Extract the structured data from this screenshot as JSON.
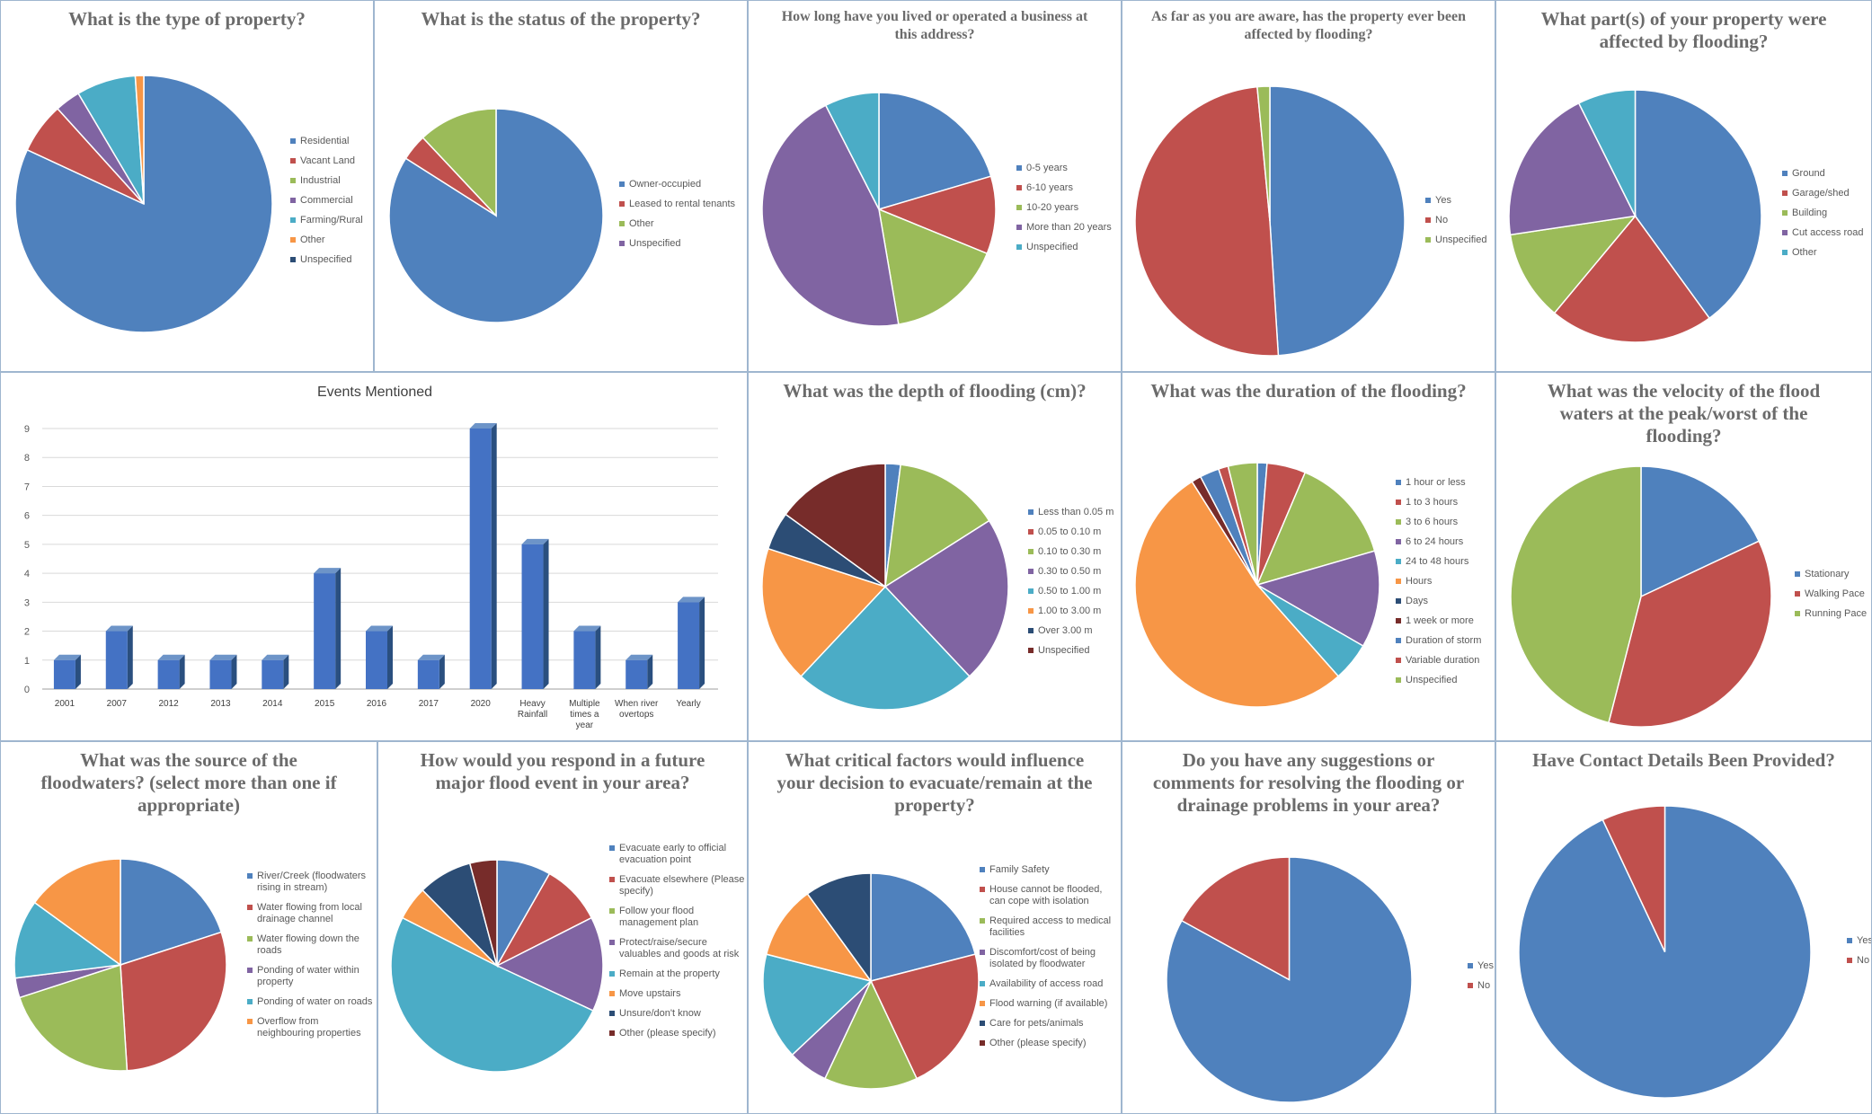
{
  "charts": [
    {
      "id": "c1",
      "title": "What is the type of property?",
      "labels": [
        "Residential",
        "Vacant Land",
        "Industrial",
        "Commercial",
        "Farming/Rural",
        "Other",
        "Unspecified"
      ],
      "values": [
        77,
        6,
        0,
        3,
        7,
        1,
        0
      ]
    },
    {
      "id": "c2",
      "title": "What is the status of the property?",
      "labels": [
        "Owner-occupied",
        "Leased to rental tenants",
        "Other",
        "Unspecified"
      ],
      "values": [
        84,
        4,
        12,
        0
      ]
    },
    {
      "id": "c3",
      "title": "How long have you lived or operated a business at this address?",
      "labels": [
        "0-5 years",
        "6-10 years",
        "10-20 years",
        "More than 20 years",
        "Unspecified"
      ],
      "values": [
        19,
        10,
        15,
        42,
        7
      ]
    },
    {
      "id": "c4",
      "title": "As far as you are aware, has the property ever been affected by flooding?",
      "labels": [
        "Yes",
        "No",
        "Unspecified"
      ],
      "values": [
        49,
        49.5,
        1.5
      ]
    },
    {
      "id": "c5",
      "title": "What part(s) of your property were affected by flooding?",
      "labels": [
        "Ground",
        "Garage/shed",
        "Building",
        "Cut access road",
        "Other"
      ],
      "values": [
        38,
        20,
        11,
        19,
        7
      ]
    },
    {
      "id": "c7",
      "title": "What was the depth of flooding (cm)?",
      "labels": [
        "Less than 0.05 m",
        "0.05 to 0.10 m",
        "0.10 to 0.30 m",
        "0.30 to 0.50 m",
        "0.50 to 1.00 m",
        "1.00 to 3.00 m",
        "Over 3.00 m",
        "Unspecified"
      ],
      "values": [
        2,
        0,
        14,
        22,
        24,
        18,
        5,
        15
      ]
    },
    {
      "id": "c8",
      "title": "What was the duration of the flooding?",
      "labels": [
        "1 hour or less",
        "1 to 3 hours",
        "3 to 6 hours",
        "6 to 24 hours",
        "24 to 48 hours",
        "Hours",
        "Days",
        "1 week or more",
        "Duration of storm",
        "Variable duration",
        "Unspecified"
      ],
      "values": [
        1,
        4,
        11,
        10,
        4,
        41,
        0,
        1,
        2,
        1,
        3
      ]
    },
    {
      "id": "c9",
      "title": "What was the velocity of the flood waters at the peak/worst of the flooding?",
      "labels": [
        "Stationary",
        "Walking Pace",
        "Running Pace"
      ],
      "values": [
        18,
        36,
        46
      ]
    },
    {
      "id": "c10",
      "title": "What was the source of the floodwaters? (select more than one if appropriate)",
      "labels": [
        "River/Creek (floodwaters rising in stream)",
        "Water flowing from local drainage channel",
        "Water flowing down the roads",
        "Ponding of water within property",
        "Ponding of water on roads",
        "Overflow from neighbouring properties"
      ],
      "values": [
        20,
        29,
        21,
        3,
        12,
        15
      ]
    },
    {
      "id": "c11",
      "title": "How would you respond in a future major flood event in your area?",
      "labels": [
        "Evacuate early to official evacuation point",
        "Evacuate elsewhere (Please specify)",
        "Follow your flood management plan",
        "Protect/raise/secure valuables and goods at risk",
        "Remain at the property",
        "Move upstairs",
        "Unsure/don't know",
        "Other (please specify)"
      ],
      "values": [
        8,
        9,
        0,
        14,
        49,
        5,
        8,
        4
      ]
    },
    {
      "id": "c12",
      "title": "What critical factors would influence your decision to evacuate/remain at the property?",
      "labels": [
        "Family Safety",
        "House cannot be flooded, can cope with isolation",
        "Required access to medical facilities",
        "Discomfort/cost of being isolated by floodwater",
        "Availability of access road",
        "Flood warning (if available)",
        "Care for pets/animals",
        "Other (please specify)"
      ],
      "values": [
        21,
        22,
        14,
        6,
        16,
        11,
        10,
        0
      ]
    },
    {
      "id": "c13",
      "title": "Do you have any suggestions or comments for resolving the flooding or drainage problems in your area?",
      "labels": [
        "Yes",
        "No"
      ],
      "values": [
        83,
        17
      ]
    },
    {
      "id": "c14",
      "title": "Have Contact Details Been Provided?",
      "labels": [
        "Yes",
        "No"
      ],
      "values": [
        93,
        7
      ]
    }
  ],
  "chart_data": {
    "type": "bar",
    "title": "Events Mentioned",
    "categories": [
      "2001",
      "2007",
      "2012",
      "2013",
      "2014",
      "2015",
      "2016",
      "2017",
      "2020",
      "Heavy Rainfall",
      "Multiple times a year",
      "When river overtops",
      "Yearly"
    ],
    "values": [
      1,
      2,
      1,
      1,
      1,
      4,
      2,
      1,
      9,
      5,
      2,
      1,
      3
    ],
    "ylim": [
      0,
      9
    ],
    "xlabel": "",
    "ylabel": ""
  },
  "colors": [
    "#4f81bd",
    "#c0504d",
    "#9bbb59",
    "#8064a2",
    "#4bacc6",
    "#f79646",
    "#2c4d75",
    "#772c2a"
  ]
}
